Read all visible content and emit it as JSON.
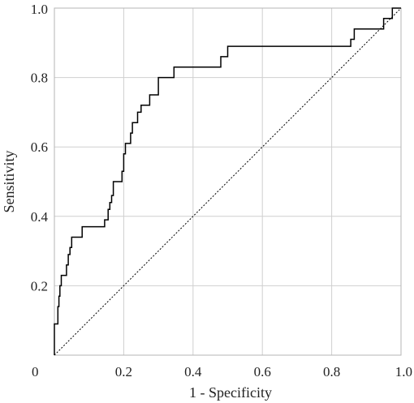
{
  "chart_data": {
    "type": "line",
    "title": "",
    "xlabel": "1 - Specificity",
    "ylabel": "Sensitivity",
    "xlim": [
      0,
      1
    ],
    "ylim": [
      0,
      1
    ],
    "grid": true,
    "x_ticks": [
      {
        "value": 0,
        "label": "0"
      },
      {
        "value": 0.2,
        "label": "0.2"
      },
      {
        "value": 0.4,
        "label": "0.4"
      },
      {
        "value": 0.6,
        "label": "0.6"
      },
      {
        "value": 0.8,
        "label": "0.8"
      },
      {
        "value": 1,
        "label": "1.0"
      }
    ],
    "y_ticks": [
      {
        "value": 0.2,
        "label": "0.2"
      },
      {
        "value": 0.4,
        "label": "0.4"
      },
      {
        "value": 0.6,
        "label": "0.6"
      },
      {
        "value": 0.8,
        "label": "0.8"
      },
      {
        "value": 1,
        "label": "1.0"
      }
    ],
    "series": [
      {
        "style": "step",
        "color": "#000000",
        "points": [
          [
            0,
            0
          ],
          [
            0,
            0.09
          ],
          [
            0.01,
            0.09
          ],
          [
            0.01,
            0.14
          ],
          [
            0.013,
            0.14
          ],
          [
            0.013,
            0.17
          ],
          [
            0.016,
            0.17
          ],
          [
            0.016,
            0.2
          ],
          [
            0.02,
            0.2
          ],
          [
            0.02,
            0.23
          ],
          [
            0.035,
            0.23
          ],
          [
            0.035,
            0.26
          ],
          [
            0.04,
            0.26
          ],
          [
            0.04,
            0.29
          ],
          [
            0.045,
            0.29
          ],
          [
            0.045,
            0.31
          ],
          [
            0.05,
            0.31
          ],
          [
            0.05,
            0.34
          ],
          [
            0.08,
            0.34
          ],
          [
            0.08,
            0.37
          ],
          [
            0.145,
            0.37
          ],
          [
            0.145,
            0.39
          ],
          [
            0.155,
            0.39
          ],
          [
            0.155,
            0.42
          ],
          [
            0.16,
            0.42
          ],
          [
            0.16,
            0.44
          ],
          [
            0.165,
            0.44
          ],
          [
            0.165,
            0.46
          ],
          [
            0.17,
            0.46
          ],
          [
            0.17,
            0.5
          ],
          [
            0.195,
            0.5
          ],
          [
            0.195,
            0.53
          ],
          [
            0.2,
            0.53
          ],
          [
            0.2,
            0.58
          ],
          [
            0.205,
            0.58
          ],
          [
            0.205,
            0.61
          ],
          [
            0.22,
            0.61
          ],
          [
            0.22,
            0.64
          ],
          [
            0.225,
            0.64
          ],
          [
            0.225,
            0.67
          ],
          [
            0.24,
            0.67
          ],
          [
            0.24,
            0.7
          ],
          [
            0.25,
            0.7
          ],
          [
            0.25,
            0.72
          ],
          [
            0.275,
            0.72
          ],
          [
            0.275,
            0.75
          ],
          [
            0.3,
            0.75
          ],
          [
            0.3,
            0.8
          ],
          [
            0.345,
            0.8
          ],
          [
            0.345,
            0.83
          ],
          [
            0.48,
            0.83
          ],
          [
            0.48,
            0.86
          ],
          [
            0.5,
            0.86
          ],
          [
            0.5,
            0.89
          ],
          [
            0.855,
            0.89
          ],
          [
            0.855,
            0.91
          ],
          [
            0.865,
            0.91
          ],
          [
            0.865,
            0.94
          ],
          [
            0.95,
            0.94
          ],
          [
            0.95,
            0.97
          ],
          [
            0.975,
            0.97
          ],
          [
            0.975,
            1
          ],
          [
            1,
            1
          ]
        ]
      },
      {
        "style": "dotted-reference",
        "color": "#000000",
        "points": [
          [
            0,
            0
          ],
          [
            1,
            1
          ]
        ]
      }
    ]
  }
}
